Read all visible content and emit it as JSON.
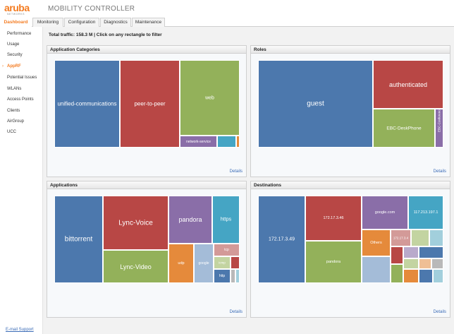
{
  "header": {
    "logo_word": "aruba",
    "logo_sub": "NETWORKS",
    "app_title": "MOBILITY CONTROLLER"
  },
  "tabs": [
    {
      "label": "Dashboard",
      "active": true
    },
    {
      "label": "Monitoring",
      "active": false
    },
    {
      "label": "Configuration",
      "active": false
    },
    {
      "label": "Diagnostics",
      "active": false
    },
    {
      "label": "Maintenance",
      "active": false
    }
  ],
  "sidebar": {
    "items": [
      {
        "label": "Performance"
      },
      {
        "label": "Usage"
      },
      {
        "label": "Security"
      },
      {
        "label": "AppRF",
        "active": true
      },
      {
        "label": "Potential Issues"
      },
      {
        "label": "WLANs"
      },
      {
        "label": "Access Points"
      },
      {
        "label": "Clients"
      },
      {
        "label": "AirGroup"
      },
      {
        "label": "UCC"
      }
    ],
    "support_link": "E-mail Support",
    "arrow": "›"
  },
  "main": {
    "traffic_label": "Total traffic: 158.3 M | Click on any rectangle to filter"
  },
  "colors": {
    "brand": "#f47b20",
    "link": "#3b6cb7",
    "blue": "#4c78ad",
    "red": "#b84745",
    "green": "#93b15a",
    "purple": "#8a6ea8",
    "teal": "#45a5c4",
    "orange": "#e58a3b"
  },
  "panels": {
    "app_categories": {
      "title": "Application Categories",
      "details": "Details",
      "tiles": {
        "unified_communications": "unified-communications",
        "peer_to_peer": "peer-to-peer",
        "web": "web",
        "network_service": "network-service"
      }
    },
    "roles": {
      "title": "Roles",
      "details": "Details",
      "tiles": {
        "guest": "guest",
        "authenticated": "authenticated",
        "ebc_deskphone": "EBC-DeskPhone",
        "ebc_conference": "EBC-Conference"
      }
    },
    "applications": {
      "title": "Applications",
      "details": "Details",
      "tiles": {
        "bittorrent": "bittorrent",
        "lync_voice": "Lync-Voice",
        "lync_video": "Lync-Video",
        "pandora": "pandora",
        "https": "https",
        "tcp": "tcp",
        "udp": "udp",
        "google": "google",
        "icmp": "icmp",
        "http": "http"
      }
    },
    "destinations": {
      "title": "Destinations",
      "details": "Details",
      "tiles": {
        "ip_172_17_3_49": "172.17.3.49",
        "ip_172_17_3_46": "172.17.3.46",
        "google_com": "google.com",
        "ip_117_213_197_1": "117.213.197.1",
        "pandora": "pandora",
        "others": "Others",
        "ip_172_17_3_4": "172.17.3.4"
      }
    }
  }
}
